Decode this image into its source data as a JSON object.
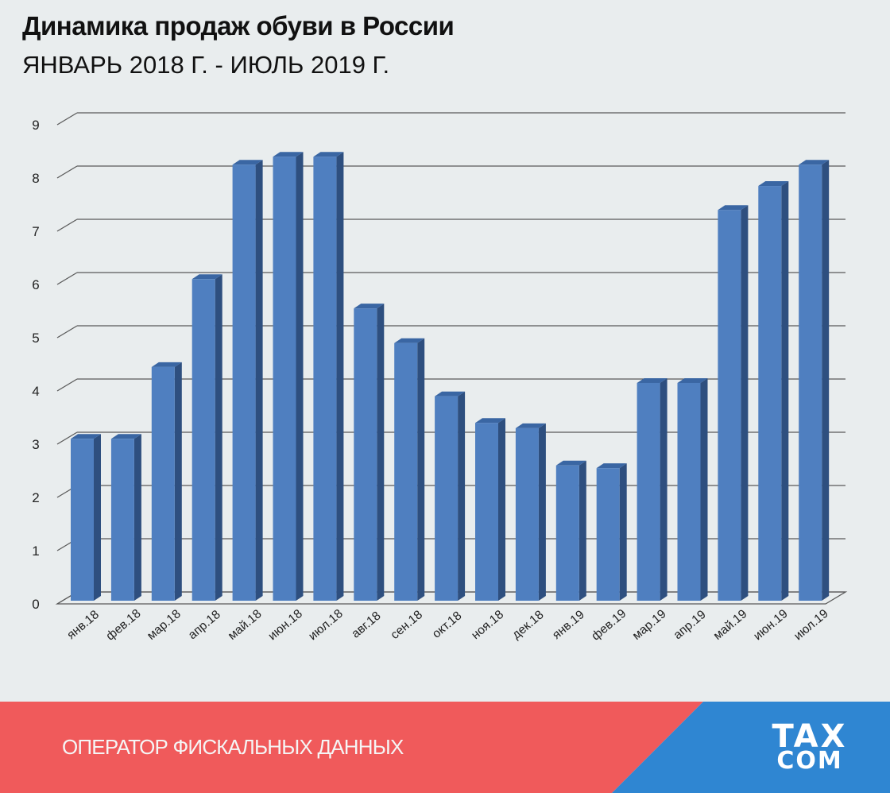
{
  "header": {
    "title": "Динамика продаж обуви в России",
    "subtitle": "ЯНВАРЬ 2018 Г. - ИЮЛЬ 2019 Г."
  },
  "footer": {
    "tagline": "ОПЕРАТОР ФИСКАЛЬНЫХ ДАННЫХ",
    "logo_top": "TAX",
    "logo_bottom": "COM",
    "colors": {
      "red": "#f05a5b",
      "blue": "#2f86d2"
    }
  },
  "chart_data": {
    "type": "bar",
    "categories": [
      "янв.18",
      "фев.18",
      "мар.18",
      "апр.18",
      "май.18",
      "июн.18",
      "июл.18",
      "авг.18",
      "сен.18",
      "окт.18",
      "ноя.18",
      "дек.18",
      "янв.19",
      "фев.19",
      "мар.19",
      "апр.19",
      "май.19",
      "июн.19",
      "июл.19"
    ],
    "values": [
      3.1,
      3.1,
      4.45,
      6.1,
      8.25,
      8.4,
      8.4,
      5.55,
      4.9,
      3.9,
      3.4,
      3.3,
      2.6,
      2.55,
      4.15,
      4.15,
      7.4,
      7.85,
      8.25
    ],
    "yticks": [
      "0",
      "1",
      "2",
      "3",
      "4",
      "5",
      "6",
      "7",
      "8",
      "9"
    ],
    "ylim": [
      0,
      9
    ],
    "grid": true,
    "style": "3d-column",
    "colors": {
      "front": "#4f7fc0",
      "side": "#2e4f7f",
      "top": "#3a66a3"
    }
  }
}
